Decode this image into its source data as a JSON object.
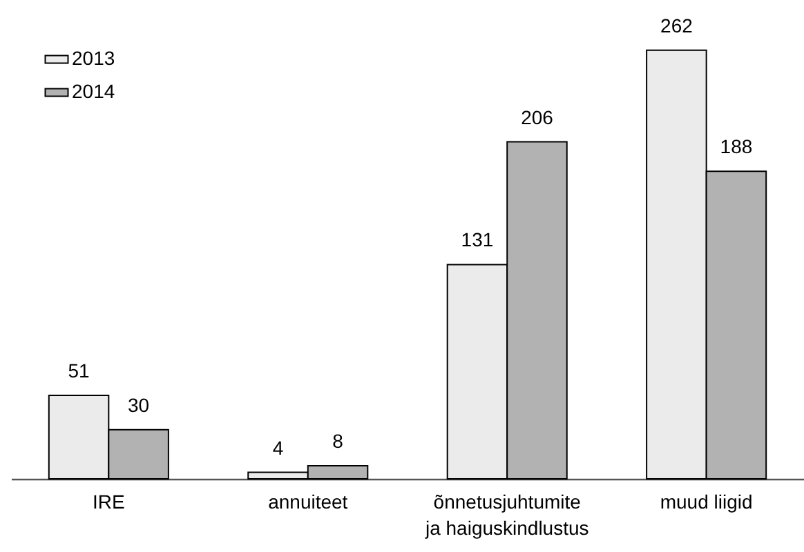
{
  "chart_data": {
    "type": "bar",
    "categories": [
      "IRE",
      "annuiteet",
      "õnnetusjuhtumite\nja haiguskindlustus",
      "muud liigid"
    ],
    "series": [
      {
        "name": "2013",
        "color": "#ebebeb",
        "values": [
          51,
          4,
          131,
          262
        ]
      },
      {
        "name": "2014",
        "color": "#b2b2b2",
        "values": [
          30,
          8,
          206,
          188
        ]
      }
    ],
    "data_labels": true,
    "legend": "top left",
    "tick_labels": "x"
  }
}
